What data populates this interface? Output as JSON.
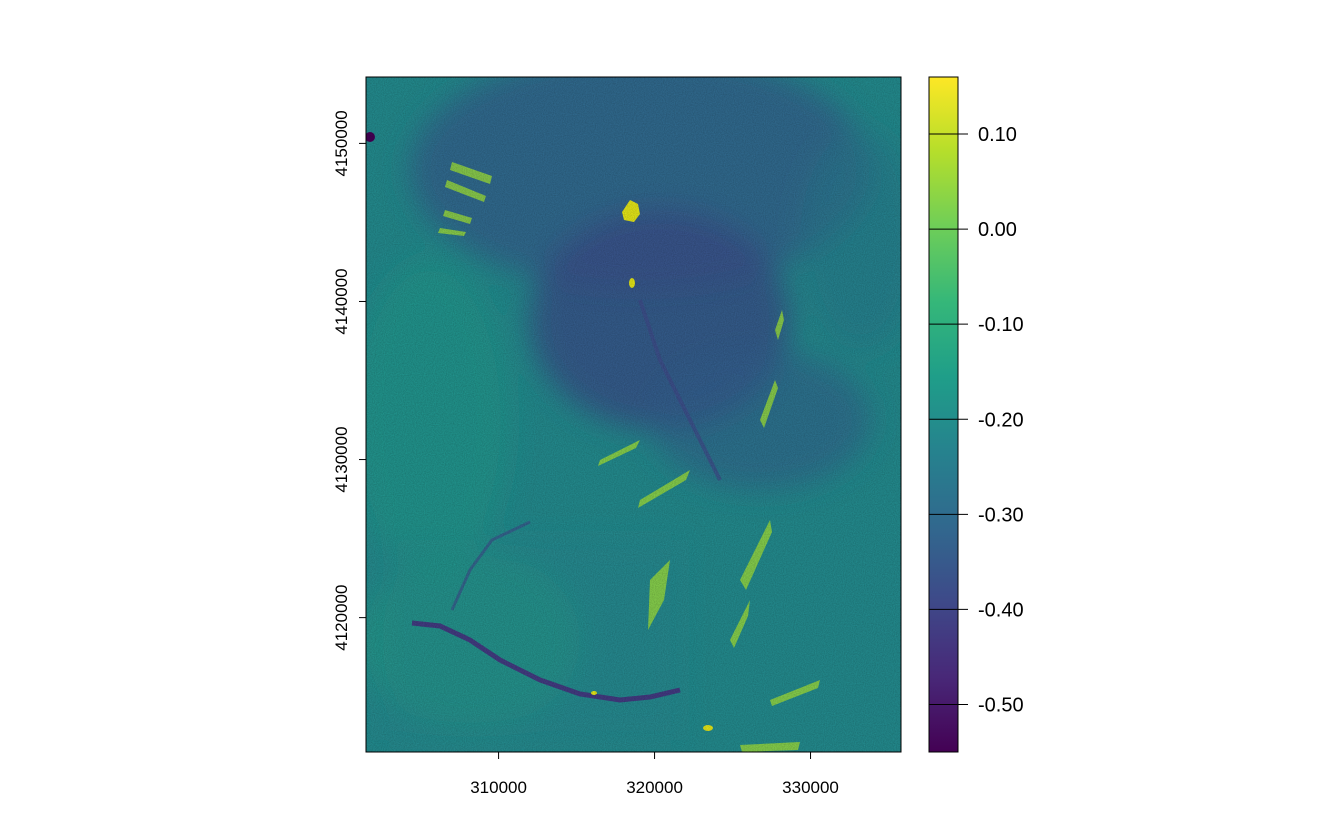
{
  "chart_data": {
    "type": "heatmap",
    "title": "",
    "xlabel": "",
    "ylabel": "",
    "xlim": [
      301500,
      335800
    ],
    "ylim": [
      4111500,
      4154200
    ],
    "x_ticks": [
      310000,
      320000,
      330000
    ],
    "x_tick_labels": [
      "310000",
      "320000",
      "330000"
    ],
    "y_ticks": [
      4120000,
      4130000,
      4140000,
      4150000
    ],
    "y_tick_labels": [
      "4120000",
      "4130000",
      "4140000",
      "4150000"
    ],
    "value_range": [
      -0.55,
      0.16
    ],
    "colormap": "viridis",
    "colorbar": {
      "ticks": [
        -0.5,
        -0.4,
        -0.3,
        -0.2,
        -0.1,
        0.0,
        0.1
      ],
      "tick_labels": [
        "-0.50",
        "-0.40",
        "-0.30",
        "-0.20",
        "-0.10",
        "0.00",
        "0.10"
      ]
    },
    "grid": false,
    "legend": "colorbar-right"
  },
  "colors": {
    "viridis": [
      "#440154",
      "#482878",
      "#3e4989",
      "#31688e",
      "#26828e",
      "#1f9e89",
      "#35b779",
      "#6ece58",
      "#b5de2b",
      "#fde725"
    ]
  }
}
